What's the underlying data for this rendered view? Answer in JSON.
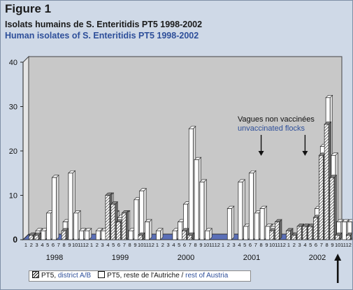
{
  "figure_label": "Figure 1",
  "title_fr": "Isolats humains de S. Enteritidis PT5 1998-2002",
  "title_en": "Human isolates of S. Enteritidis PT5 1998-2002",
  "annotation": {
    "line1": "Vagues non vaccinées",
    "line2": "unvaccinated flocks"
  },
  "legend": {
    "series1_prefix": "PT5,",
    "series1_label": "district A/B",
    "series2_prefix": "PT5, reste de l'Autriche /",
    "series2_label": "rest of Austria"
  },
  "colors": {
    "background": "#cfd9e7",
    "plot_back": "#c8c8c8",
    "floor": "#5a6fb8",
    "accent_blue": "#2e4f9a",
    "bar_fill": "#ffffff",
    "bar_side": "#d8d8d8"
  },
  "chart_data": {
    "type": "bar",
    "style": "3d",
    "ylim": [
      0,
      40
    ],
    "yticks": [
      0,
      10,
      20,
      30,
      40
    ],
    "years": [
      "1998",
      "1999",
      "2000",
      "2001",
      "2002"
    ],
    "month_labels": [
      "1",
      "2",
      "3",
      "4",
      "5",
      "6",
      "7",
      "8",
      "9",
      "10",
      "11",
      "12"
    ],
    "series": [
      {
        "name": "PT5, district A/B",
        "pattern": "hatched",
        "values": [
          [
            0,
            1,
            1,
            0,
            0,
            0,
            0,
            2,
            0,
            0,
            0,
            0
          ],
          [
            0,
            0,
            0,
            10,
            8,
            4,
            6,
            0,
            0,
            1,
            0,
            0
          ],
          [
            0,
            0,
            0,
            0,
            0,
            2,
            1,
            0,
            0,
            0,
            0,
            0
          ],
          [
            0,
            0,
            0,
            0,
            0,
            0,
            0,
            0,
            0,
            2,
            4,
            0
          ],
          [
            2,
            1,
            3,
            3,
            3,
            5,
            19,
            26,
            14,
            1,
            0,
            1
          ]
        ]
      },
      {
        "name": "PT5, reste de l'Autriche / rest of Austria",
        "pattern": "white",
        "values": [
          [
            0,
            1,
            2,
            2,
            6,
            14,
            0,
            4,
            15,
            6,
            2,
            2
          ],
          [
            0,
            2,
            2,
            10,
            6,
            5,
            6,
            2,
            9,
            11,
            4,
            0
          ],
          [
            2,
            0,
            0,
            2,
            4,
            8,
            25,
            18,
            13,
            2,
            0,
            0
          ],
          [
            0,
            7,
            0,
            13,
            3,
            15,
            6,
            7,
            3,
            3,
            0,
            0
          ],
          [
            1,
            1,
            0,
            0,
            0,
            7,
            21,
            32,
            19,
            4,
            4,
            4
          ]
        ]
      }
    ],
    "annotation_arrow_months": [
      {
        "year": "2001",
        "month": 8
      },
      {
        "year": "2002",
        "month": 4
      }
    ],
    "current_arrow": {
      "year": "2002",
      "month": 10
    }
  }
}
